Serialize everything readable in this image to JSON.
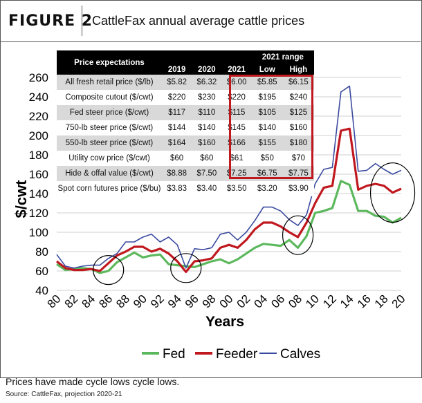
{
  "header": {
    "figure_label": "FIGURE 2",
    "title": "CattleFax annual average cattle prices"
  },
  "table": {
    "heading": "Price expectations",
    "range_heading": "2021 range",
    "columns": [
      "2019",
      "2020",
      "2021",
      "Low",
      "High"
    ],
    "rows": [
      {
        "label": "All fresh retail price ($/lb)",
        "values": [
          "$5.82",
          "$6.32",
          "$6.00",
          "$5.85",
          "$6.15"
        ]
      },
      {
        "label": "Composite cutout ($/cwt)",
        "values": [
          "$220",
          "$230",
          "$220",
          "$195",
          "$240"
        ]
      },
      {
        "label": "Fed steer price ($/cwt)",
        "values": [
          "$117",
          "$110",
          "$115",
          "$105",
          "$125"
        ]
      },
      {
        "label": "750-lb steer price ($/cwt)",
        "values": [
          "$144",
          "$140",
          "$145",
          "$140",
          "$160"
        ]
      },
      {
        "label": "550-lb steer price ($/cwt)",
        "values": [
          "$164",
          "$160",
          "$166",
          "$155",
          "$180"
        ]
      },
      {
        "label": "Utility cow price ($/cwt)",
        "values": [
          "$60",
          "$60",
          "$61",
          "$50",
          "$70"
        ]
      },
      {
        "label": "Hide & offal value ($/cwt)",
        "values": [
          "$8.88",
          "$7.50",
          "$7.25",
          "$6.75",
          "$7.75"
        ]
      },
      {
        "label": "Spot corn futures price ($/bu)",
        "values": [
          "$3.83",
          "$3.40",
          "$3.50",
          "$3.20",
          "$3.90"
        ]
      }
    ]
  },
  "chart_data": {
    "type": "line",
    "xlabel": "Years",
    "ylabel": "$/cwt",
    "ylim": [
      40,
      260
    ],
    "yticks": [
      40,
      60,
      80,
      100,
      120,
      140,
      160,
      180,
      200,
      220,
      240,
      260
    ],
    "x": [
      80,
      81,
      82,
      83,
      84,
      85,
      86,
      87,
      88,
      89,
      90,
      91,
      92,
      93,
      94,
      95,
      96,
      97,
      98,
      99,
      100,
      101,
      102,
      103,
      104,
      105,
      106,
      107,
      108,
      109,
      110,
      111,
      112,
      113,
      114,
      115,
      116,
      117,
      118,
      119,
      120
    ],
    "xtick_labels": [
      "80",
      "82",
      "84",
      "86",
      "88",
      "90",
      "92",
      "94",
      "96",
      "98",
      "00",
      "02",
      "04",
      "06",
      "08",
      "10",
      "12",
      "14",
      "16",
      "18",
      "20"
    ],
    "series": [
      {
        "name": "Fed",
        "color": "#5cb85c",
        "values": [
          67,
          61,
          62,
          63,
          62,
          58,
          60,
          69,
          74,
          79,
          74,
          76,
          77,
          67,
          66,
          65,
          64,
          67,
          70,
          72,
          68,
          72,
          78,
          84,
          88,
          87,
          86,
          92,
          84,
          96,
          120,
          122,
          125,
          153,
          149,
          122,
          122,
          117,
          116,
          110,
          115
        ]
      },
      {
        "name": "Feeder",
        "color": "#c0181f",
        "values": [
          70,
          63,
          61,
          61,
          62,
          60,
          68,
          76,
          80,
          85,
          85,
          80,
          83,
          78,
          70,
          59,
          70,
          71,
          73,
          84,
          87,
          84,
          92,
          103,
          110,
          110,
          106,
          100,
          95,
          110,
          130,
          146,
          148,
          205,
          207,
          144,
          148,
          150,
          148,
          141,
          145
        ]
      },
      {
        "name": "Calves",
        "color": "#3a4a9f",
        "values": [
          77,
          65,
          63,
          65,
          66,
          66,
          73,
          78,
          90,
          90,
          95,
          98,
          90,
          95,
          87,
          63,
          83,
          82,
          84,
          98,
          100,
          92,
          100,
          112,
          126,
          126,
          122,
          113,
          107,
          118,
          150,
          165,
          167,
          245,
          251,
          163,
          164,
          171,
          165,
          160,
          164
        ]
      }
    ],
    "legend": [
      "Fed",
      "Feeder",
      "Calves"
    ]
  },
  "caption": "Prices have made cycle lows cycle lows.",
  "source": "Source: CattleFax, projection 2020-21"
}
